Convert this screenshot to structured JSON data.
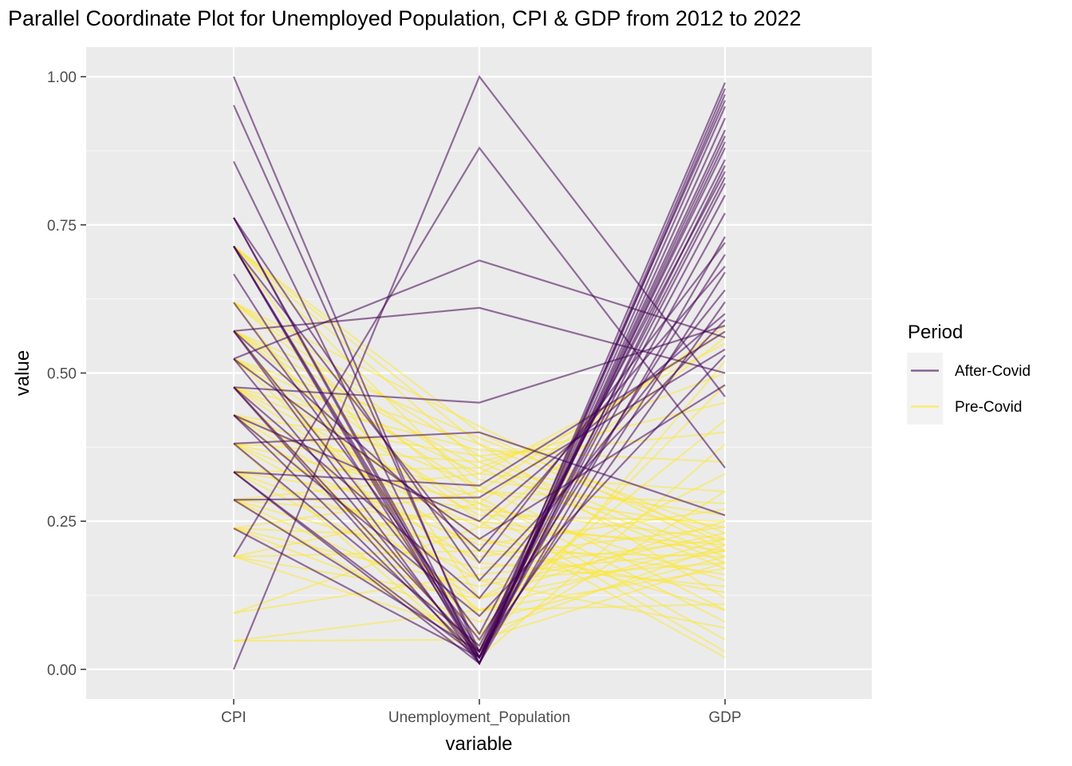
{
  "chart_data": {
    "type": "parallel-coordinates",
    "title": "Parallel Coordinate Plot for Unemployed Population, CPI & GDP from 2012 to 2022",
    "xlabel": "variable",
    "ylabel": "value",
    "ylim": [
      -0.05,
      1.05
    ],
    "yticks": [
      "0.00",
      "0.25",
      "0.50",
      "0.75",
      "1.00"
    ],
    "ytick_values": [
      0,
      0.25,
      0.5,
      0.75,
      1.0
    ],
    "categories": [
      "CPI",
      "Unemployment_Population",
      "GDP"
    ],
    "grid": true,
    "legend": {
      "title": "Period",
      "placement": "right",
      "entries": [
        {
          "label": "After-Covid",
          "color": "#440154"
        },
        {
          "label": "Pre-Covid",
          "color": "#FDE725"
        }
      ]
    },
    "series": [
      {
        "name": "Pre-Covid",
        "color": "#FDE725",
        "lines": [
          [
            0.714,
            0.4,
            0.2
          ],
          [
            0.714,
            0.38,
            0.22
          ],
          [
            0.714,
            0.35,
            0.18
          ],
          [
            0.714,
            0.3,
            0.24
          ],
          [
            0.619,
            0.41,
            0.21
          ],
          [
            0.619,
            0.36,
            0.19
          ],
          [
            0.619,
            0.32,
            0.26
          ],
          [
            0.619,
            0.28,
            0.15
          ],
          [
            0.571,
            0.39,
            0.23
          ],
          [
            0.571,
            0.34,
            0.17
          ],
          [
            0.571,
            0.3,
            0.28
          ],
          [
            0.571,
            0.25,
            0.2
          ],
          [
            0.524,
            0.38,
            0.12
          ],
          [
            0.524,
            0.33,
            0.3
          ],
          [
            0.524,
            0.27,
            0.22
          ],
          [
            0.524,
            0.22,
            0.16
          ],
          [
            0.476,
            0.37,
            0.35
          ],
          [
            0.476,
            0.31,
            0.1
          ],
          [
            0.476,
            0.26,
            0.25
          ],
          [
            0.476,
            0.2,
            0.19
          ],
          [
            0.429,
            0.36,
            0.4
          ],
          [
            0.429,
            0.29,
            0.08
          ],
          [
            0.429,
            0.24,
            0.21
          ],
          [
            0.429,
            0.18,
            0.14
          ],
          [
            0.381,
            0.35,
            0.45
          ],
          [
            0.381,
            0.28,
            0.05
          ],
          [
            0.381,
            0.21,
            0.27
          ],
          [
            0.381,
            0.15,
            0.18
          ],
          [
            0.333,
            0.34,
            0.5
          ],
          [
            0.333,
            0.27,
            0.03
          ],
          [
            0.333,
            0.19,
            0.24
          ],
          [
            0.333,
            0.12,
            0.2
          ],
          [
            0.286,
            0.33,
            0.55
          ],
          [
            0.286,
            0.25,
            0.02
          ],
          [
            0.286,
            0.17,
            0.22
          ],
          [
            0.286,
            0.1,
            0.17
          ],
          [
            0.238,
            0.3,
            0.57
          ],
          [
            0.238,
            0.22,
            0.1
          ],
          [
            0.238,
            0.14,
            0.23
          ],
          [
            0.238,
            0.08,
            0.19
          ],
          [
            0.19,
            0.28,
            0.58
          ],
          [
            0.19,
            0.2,
            0.13
          ],
          [
            0.19,
            0.12,
            0.25
          ],
          [
            0.19,
            0.06,
            0.21
          ],
          [
            0.095,
            0.24,
            0.56
          ],
          [
            0.095,
            0.16,
            0.2
          ],
          [
            0.048,
            0.1,
            0.22
          ],
          [
            0.048,
            0.05,
            0.18
          ],
          [
            0.714,
            0.12,
            0.33
          ],
          [
            0.619,
            0.09,
            0.42
          ],
          [
            0.571,
            0.06,
            0.48
          ],
          [
            0.476,
            0.03,
            0.52
          ],
          [
            0.381,
            0.02,
            0.38
          ],
          [
            0.286,
            0.04,
            0.3
          ],
          [
            0.524,
            0.15,
            0.07
          ],
          [
            0.429,
            0.1,
            0.11
          ]
        ]
      },
      {
        "name": "After-Covid",
        "color": "#440154",
        "lines": [
          [
            1.0,
            0.02,
            0.99
          ],
          [
            0.952,
            0.03,
            0.96
          ],
          [
            0.857,
            0.01,
            0.93
          ],
          [
            0.762,
            0.02,
            0.9
          ],
          [
            0.762,
            0.01,
            0.85
          ],
          [
            0.714,
            0.02,
            0.82
          ],
          [
            0.714,
            0.03,
            0.88
          ],
          [
            0.714,
            0.01,
            0.95
          ],
          [
            0.667,
            0.02,
            0.77
          ],
          [
            0.571,
            0.01,
            0.73
          ],
          [
            0.571,
            0.05,
            0.7
          ],
          [
            0.524,
            0.02,
            0.67
          ],
          [
            0.476,
            0.03,
            0.62
          ],
          [
            0.476,
            0.01,
            0.98
          ],
          [
            0.429,
            0.02,
            0.91
          ],
          [
            0.381,
            0.04,
            0.86
          ],
          [
            0.333,
            0.02,
            0.8
          ],
          [
            0.333,
            0.01,
            0.97
          ],
          [
            0.286,
            0.03,
            0.83
          ],
          [
            0.238,
            0.02,
            0.89
          ],
          [
            0.0,
            1.0,
            0.46
          ],
          [
            0.19,
            0.88,
            0.34
          ],
          [
            0.571,
            0.61,
            0.5
          ],
          [
            0.524,
            0.69,
            0.56
          ],
          [
            0.476,
            0.45,
            0.58
          ],
          [
            0.381,
            0.4,
            0.26
          ],
          [
            0.286,
            0.29,
            0.54
          ],
          [
            0.333,
            0.31,
            0.57
          ],
          [
            0.429,
            0.25,
            0.6
          ],
          [
            0.524,
            0.22,
            0.48
          ],
          [
            0.571,
            0.2,
            0.68
          ],
          [
            0.714,
            0.18,
            0.72
          ],
          [
            0.762,
            0.15,
            0.59
          ],
          [
            0.476,
            0.12,
            0.64
          ],
          [
            0.429,
            0.09,
            0.53
          ],
          [
            0.619,
            0.06,
            0.84
          ]
        ]
      }
    ]
  }
}
